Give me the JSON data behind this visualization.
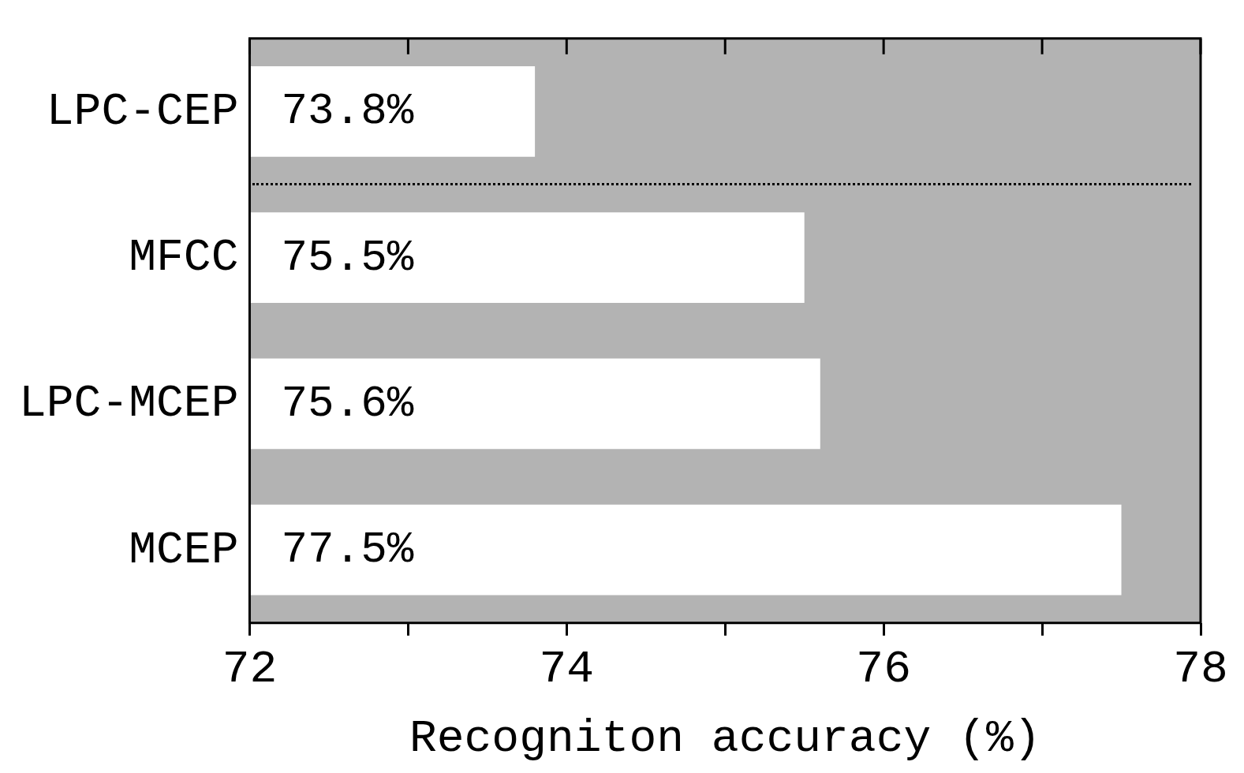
{
  "chart_data": {
    "type": "bar",
    "orientation": "horizontal",
    "xlabel": "Recogniton accuracy (%)",
    "categories": [
      "LPC-CEP",
      "MFCC",
      "LPC-MCEP",
      "MCEP"
    ],
    "values": [
      73.8,
      75.5,
      75.6,
      77.5
    ],
    "value_labels": [
      "73.8%",
      "75.5%",
      "75.6%",
      "77.5%"
    ],
    "color": "#ffffff",
    "xlim": [
      72,
      78
    ],
    "xticks": [
      72,
      {
        "value": 73,
        "label": null
      },
      74,
      {
        "value": 75,
        "label": null
      },
      76,
      {
        "value": 77,
        "label": null
      },
      78
    ],
    "grid": false,
    "legend": false
  }
}
